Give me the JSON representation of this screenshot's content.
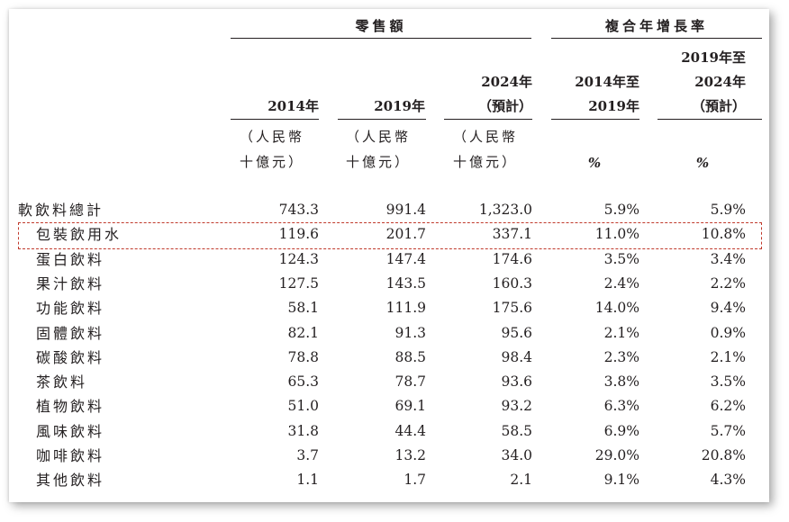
{
  "header": {
    "retail_sales": "零售額",
    "cagr": "複合年增長率"
  },
  "columns": [
    {
      "head": "2014年",
      "unit": "（人民幣\n十億元）"
    },
    {
      "head": "2019年",
      "unit": "（人民幣\n十億元）"
    },
    {
      "head": "2024年\n（預計）",
      "unit": "（人民幣\n十億元）"
    },
    {
      "head": "2014年至\n2019年",
      "unit": "%"
    },
    {
      "head": "2019年至\n2024年\n（預計）",
      "unit": "%"
    }
  ],
  "rows": [
    {
      "label": "軟飲料總計",
      "v": [
        "743.3",
        "991.4",
        "1,323.0",
        "5.9%",
        "5.9%"
      ]
    },
    {
      "label": "包裝飲用水",
      "v": [
        "119.6",
        "201.7",
        "337.1",
        "11.0%",
        "10.8%"
      ]
    },
    {
      "label": "蛋白飲料",
      "v": [
        "124.3",
        "147.4",
        "174.6",
        "3.5%",
        "3.4%"
      ]
    },
    {
      "label": "果汁飲料",
      "v": [
        "127.5",
        "143.5",
        "160.3",
        "2.4%",
        "2.2%"
      ]
    },
    {
      "label": "功能飲料",
      "v": [
        "58.1",
        "111.9",
        "175.6",
        "14.0%",
        "9.4%"
      ]
    },
    {
      "label": "固體飲料",
      "v": [
        "82.1",
        "91.3",
        "95.6",
        "2.1%",
        "0.9%"
      ]
    },
    {
      "label": "碳酸飲料",
      "v": [
        "78.8",
        "88.5",
        "98.4",
        "2.3%",
        "2.1%"
      ]
    },
    {
      "label": "茶飲料",
      "v": [
        "65.3",
        "78.7",
        "93.6",
        "3.8%",
        "3.5%"
      ]
    },
    {
      "label": "植物飲料",
      "v": [
        "51.0",
        "69.1",
        "93.2",
        "6.3%",
        "6.2%"
      ]
    },
    {
      "label": "風味飲料",
      "v": [
        "31.8",
        "44.4",
        "58.5",
        "6.9%",
        "5.7%"
      ]
    },
    {
      "label": "咖啡飲料",
      "v": [
        "3.7",
        "13.2",
        "34.0",
        "29.0%",
        "20.8%"
      ]
    },
    {
      "label": "其他飲料",
      "v": [
        "1.1",
        "1.7",
        "2.1",
        "9.1%",
        "4.3%"
      ]
    }
  ]
}
